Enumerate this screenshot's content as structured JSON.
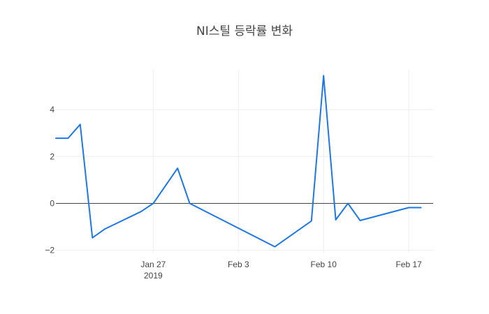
{
  "chart_data": {
    "type": "line",
    "title": "NI스틸 등락률 변화",
    "xlabel": "",
    "ylabel": "",
    "x_range": [
      "2019-01-19",
      "2019-02-19"
    ],
    "ylim": [
      -2.1,
      5.7
    ],
    "y_ticks": [
      -2,
      0,
      2,
      4
    ],
    "y_tick_labels": [
      "−2",
      "0",
      "2",
      "4"
    ],
    "x_ticks": [
      {
        "date": "2019-01-27",
        "label": "Jan 27",
        "sublabel": "2019"
      },
      {
        "date": "2019-02-03",
        "label": "Feb 3",
        "sublabel": ""
      },
      {
        "date": "2019-02-10",
        "label": "Feb 10",
        "sublabel": ""
      },
      {
        "date": "2019-02-17",
        "label": "Feb 17",
        "sublabel": ""
      }
    ],
    "grid": true,
    "series": [
      {
        "color": "#1f77e4",
        "points": [
          {
            "x": "2019-01-19",
            "y": 2.78
          },
          {
            "x": "2019-01-20",
            "y": 2.78
          },
          {
            "x": "2019-01-21",
            "y": 3.37
          },
          {
            "x": "2019-01-22",
            "y": -1.47
          },
          {
            "x": "2019-01-23",
            "y": -1.1
          },
          {
            "x": "2019-01-26",
            "y": -0.35
          },
          {
            "x": "2019-01-27",
            "y": 0.0
          },
          {
            "x": "2019-01-29",
            "y": 1.5
          },
          {
            "x": "2019-01-30",
            "y": 0.0
          },
          {
            "x": "2019-02-06",
            "y": -1.85
          },
          {
            "x": "2019-02-09",
            "y": -0.75
          },
          {
            "x": "2019-02-10",
            "y": 5.45
          },
          {
            "x": "2019-02-11",
            "y": -0.7
          },
          {
            "x": "2019-02-12",
            "y": 0.0
          },
          {
            "x": "2019-02-13",
            "y": -0.73
          },
          {
            "x": "2019-02-17",
            "y": -0.18
          },
          {
            "x": "2019-02-18",
            "y": -0.18
          }
        ]
      }
    ]
  }
}
